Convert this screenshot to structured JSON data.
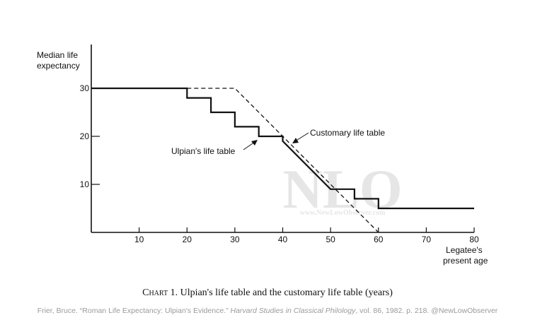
{
  "chart_data": {
    "type": "line",
    "ylabel_line1": "Median life",
    "ylabel_line2": "expectancy",
    "xlabel_line1": "Legatee's",
    "xlabel_line2": "present age",
    "xlim": [
      0,
      80
    ],
    "ylim": [
      0,
      40
    ],
    "x_ticks": [
      10,
      20,
      30,
      40,
      50,
      60,
      70,
      80
    ],
    "y_ticks": [
      10,
      20,
      30
    ],
    "series": [
      {
        "name": "Ulpian's life table",
        "style": "solid",
        "points": [
          [
            0,
            30
          ],
          [
            20,
            30
          ],
          [
            20,
            28
          ],
          [
            25,
            28
          ],
          [
            25,
            25
          ],
          [
            30,
            25
          ],
          [
            30,
            22
          ],
          [
            35,
            22
          ],
          [
            35,
            20
          ],
          [
            40,
            20
          ],
          [
            40,
            19
          ],
          [
            50,
            9
          ],
          [
            55,
            9
          ],
          [
            55,
            7
          ],
          [
            60,
            7
          ],
          [
            60,
            5
          ],
          [
            80,
            5
          ]
        ]
      },
      {
        "name": "Customary life table",
        "style": "dashed",
        "points": [
          [
            20,
            30
          ],
          [
            30,
            30
          ],
          [
            60,
            0
          ]
        ]
      }
    ],
    "annotations": {
      "ulpian": "Ulpian's life table",
      "customary": "Customary life table"
    },
    "grid": false
  },
  "watermark": {
    "logo": "NLO",
    "url": "www.NewLowObserver.com"
  },
  "caption": {
    "prefix": "Chart",
    "number": "1.",
    "text": "Ulpian's life table and the customary life table (years)"
  },
  "citation": {
    "before": "Frier, Bruce. “Roman Life Expectancy: Ulpian's Evidence.” ",
    "journal": "Harvard Studies in Classical Philology",
    "after": ", vol. 86, 1982. p. 218. @NewLowObserver"
  }
}
